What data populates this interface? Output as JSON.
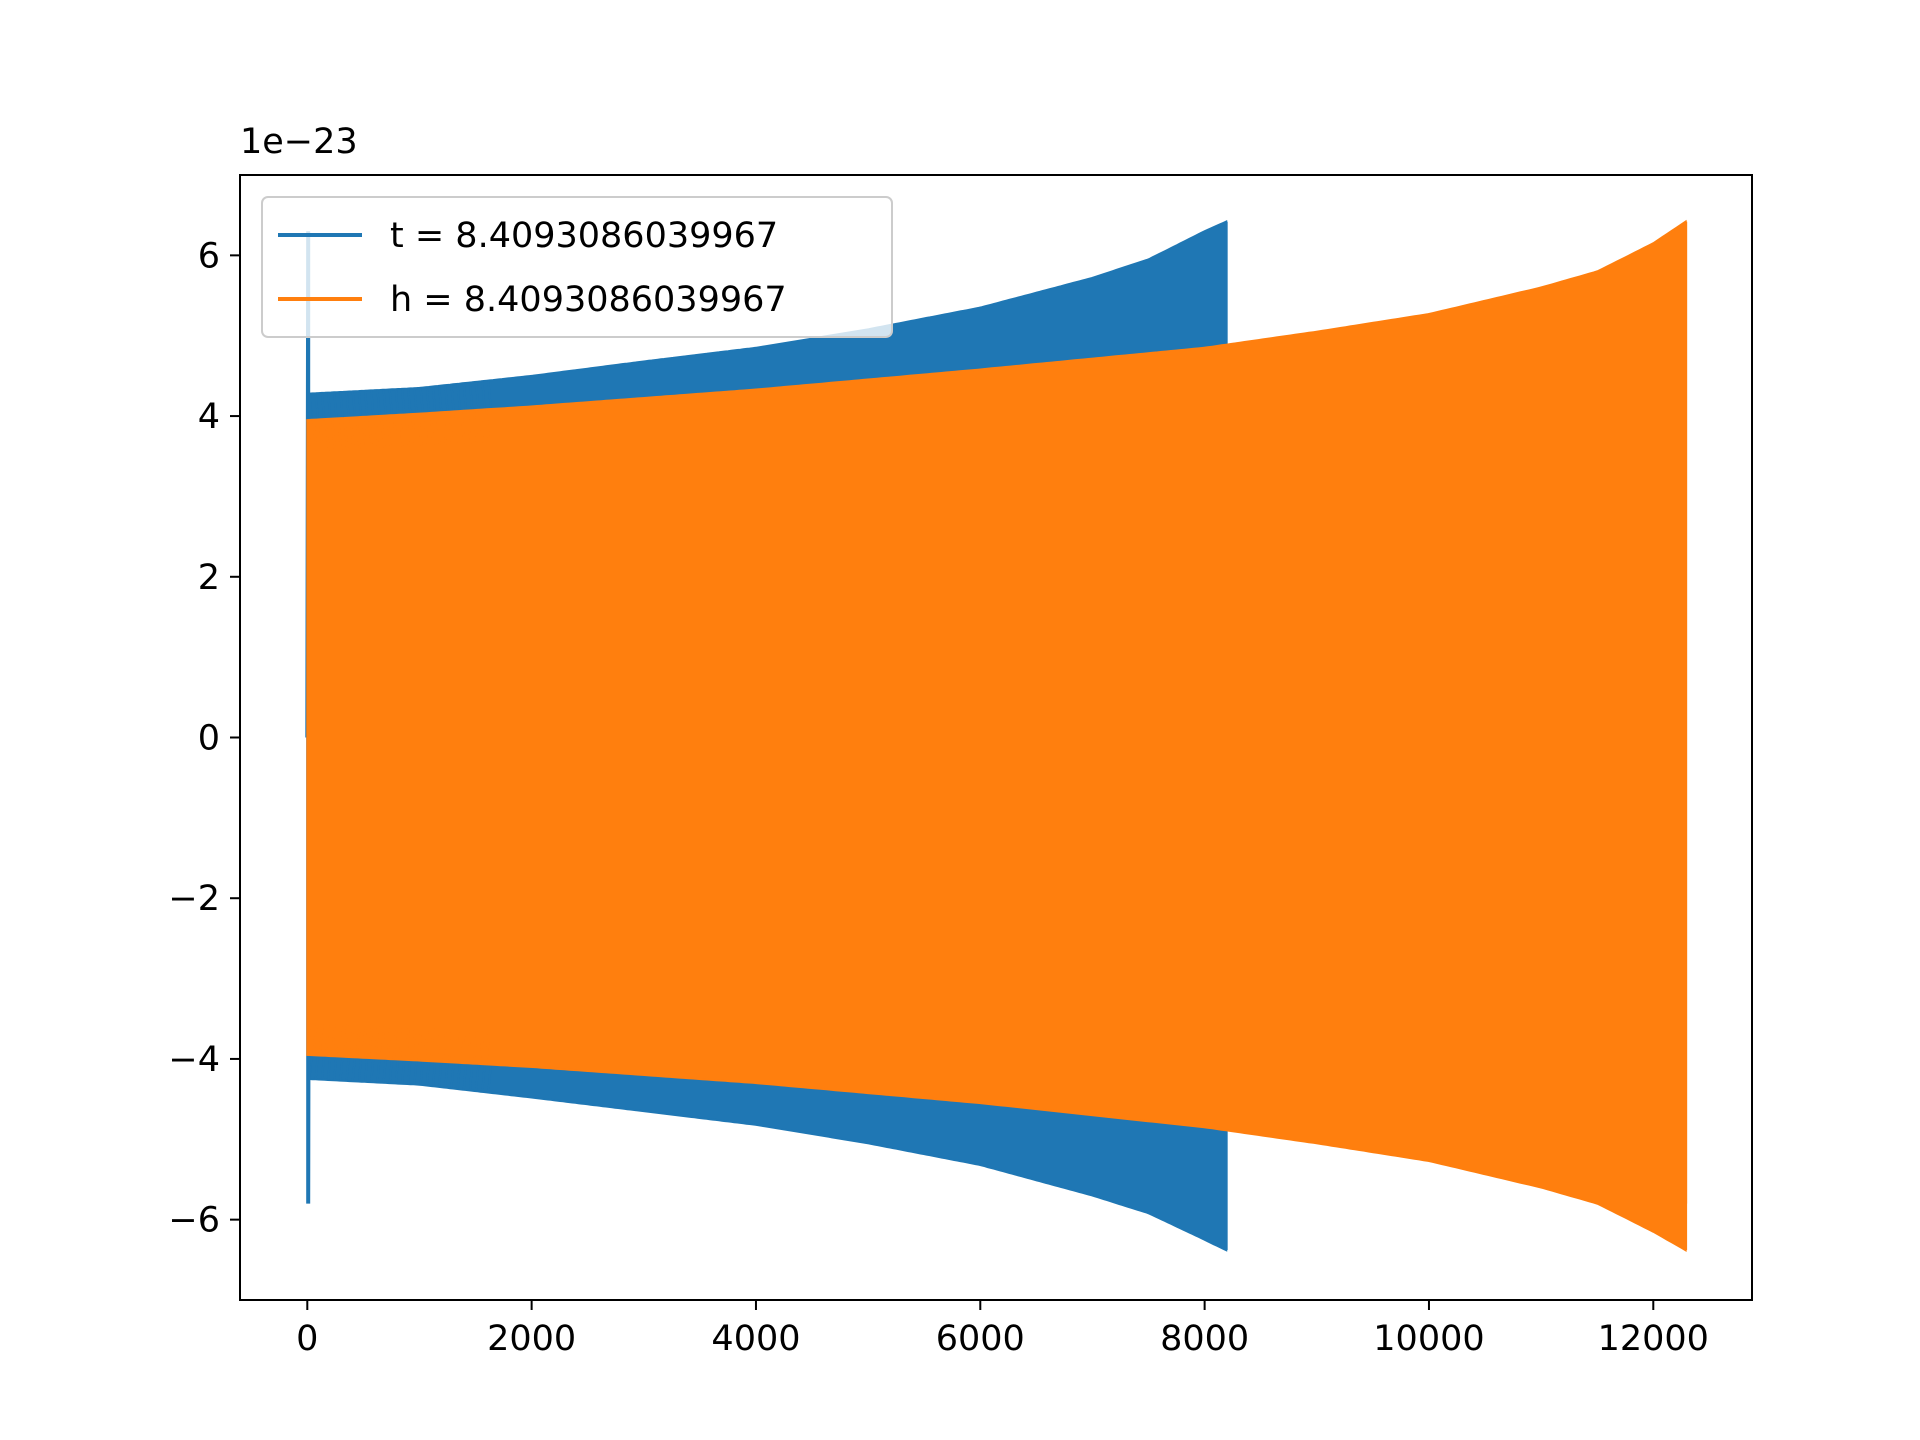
{
  "chart_data": {
    "type": "line",
    "title": "",
    "xlabel": "",
    "ylabel": "",
    "xlim": [
      -600,
      12880
    ],
    "ylim": [
      -7.0,
      7.0
    ],
    "y_offset_text": "1e−23",
    "xticks": [
      0,
      2000,
      4000,
      6000,
      8000,
      10000,
      12000
    ],
    "xtick_labels": [
      "0",
      "2000",
      "4000",
      "6000",
      "8000",
      "10000",
      "12000"
    ],
    "yticks": [
      -6,
      -4,
      -2,
      0,
      2,
      4,
      6
    ],
    "ytick_labels": [
      "−6",
      "−4",
      "−2",
      "0",
      "2",
      "4",
      "6"
    ],
    "grid": false,
    "legend_position": "upper-left",
    "series": [
      {
        "name": "t = 8.4093086039967",
        "color": "#1f77b4",
        "x_start": 0,
        "x_end": 8192,
        "initial_spike_max": 6.3,
        "initial_spike_min": -5.8,
        "envelope_x": [
          20,
          1000,
          2000,
          3000,
          4000,
          5000,
          6000,
          7000,
          7500,
          8000,
          8192
        ],
        "envelope_upper": [
          4.28,
          4.35,
          4.5,
          4.68,
          4.85,
          5.08,
          5.35,
          5.72,
          5.95,
          6.3,
          6.42
        ],
        "envelope_lower": [
          -4.25,
          -4.32,
          -4.48,
          -4.65,
          -4.82,
          -5.05,
          -5.32,
          -5.7,
          -5.92,
          -6.25,
          -6.38
        ]
      },
      {
        "name": "h = 8.4093086039967",
        "color": "#ff7f0e",
        "x_start": 0,
        "x_end": 12288,
        "envelope_x": [
          0,
          1000,
          2000,
          4000,
          6000,
          8000,
          9000,
          10000,
          11000,
          11500,
          12000,
          12288
        ],
        "envelope_upper": [
          3.95,
          4.03,
          4.12,
          4.33,
          4.58,
          4.85,
          5.05,
          5.27,
          5.6,
          5.8,
          6.15,
          6.42
        ],
        "envelope_lower": [
          -3.95,
          -4.02,
          -4.1,
          -4.3,
          -4.55,
          -4.85,
          -5.05,
          -5.27,
          -5.6,
          -5.8,
          -6.15,
          -6.38
        ],
        "end_value": -5.8
      }
    ]
  }
}
